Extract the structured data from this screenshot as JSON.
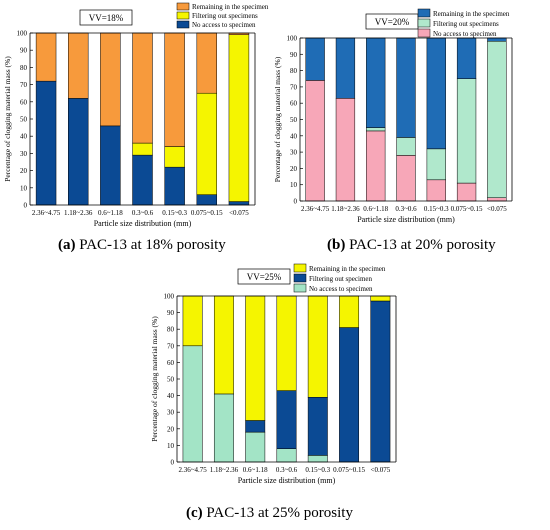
{
  "figure": {
    "captions": [
      {
        "tag": "(a)",
        "text": " PAC-13 at 18% porosity"
      },
      {
        "tag": "(b)",
        "text": " PAC-13 at 20% porosity"
      },
      {
        "tag": "(c)",
        "text": " PAC-13 at 25% porosity"
      }
    ]
  },
  "chart_data": [
    {
      "type": "bar",
      "stacked": true,
      "annotation": "VV=18%",
      "xlabel": "Particle size distribution (mm)",
      "ylabel": "Percentage of clogging material mass (%)",
      "ylim": [
        0,
        100
      ],
      "yticks": [
        0,
        10,
        20,
        30,
        40,
        50,
        60,
        70,
        80,
        90,
        100
      ],
      "legend_position": "top-right",
      "categories": [
        "2.36~4.75",
        "1.18~2.36",
        "0.6~1.18",
        "0.3~0.6",
        "0.15~0.3",
        "0.075~0.15",
        "<0.075"
      ],
      "series": [
        {
          "name": "No access to specimen",
          "color": "#0b4a94",
          "values": [
            72,
            62,
            46,
            29,
            22,
            6,
            2
          ]
        },
        {
          "name": "Filtering out specimens",
          "color": "#f5f500",
          "values": [
            0,
            0,
            0,
            7,
            12,
            59,
            97
          ]
        },
        {
          "name": "Remaining in the specimen",
          "color": "#f79a3c",
          "values": [
            28,
            38,
            54,
            64,
            66,
            35,
            1
          ]
        }
      ]
    },
    {
      "type": "bar",
      "stacked": true,
      "annotation": "VV=20%",
      "xlabel": "Particle size distribution (mm)",
      "ylabel": "Percentage of clogging material mass (%)",
      "ylim": [
        0,
        100
      ],
      "yticks": [
        0,
        10,
        20,
        30,
        40,
        50,
        60,
        70,
        80,
        90,
        100
      ],
      "legend_position": "top-right",
      "categories": [
        "2.36~4.75",
        "1.18~2.36",
        "0.6~1.18",
        "0.3~0.6",
        "0.15~0.3",
        "0.075~0.15",
        "<0.075"
      ],
      "series": [
        {
          "name": "No access to specimen",
          "color": "#f7a7b8",
          "values": [
            74,
            63,
            43,
            28,
            13,
            11,
            2
          ]
        },
        {
          "name": "Filtering out specimens",
          "color": "#b0e8cc",
          "values": [
            0,
            0,
            2,
            11,
            19,
            64,
            96
          ]
        },
        {
          "name": "Remaining in the specimen",
          "color": "#1f6cb5",
          "values": [
            26,
            37,
            55,
            61,
            68,
            25,
            2
          ]
        }
      ]
    },
    {
      "type": "bar",
      "stacked": true,
      "annotation": "VV=25%",
      "xlabel": "Particle size distribution (mm)",
      "ylabel": "Percentage of clogging material mass (%)",
      "ylim": [
        0,
        100
      ],
      "yticks": [
        0,
        10,
        20,
        30,
        40,
        50,
        60,
        70,
        80,
        90,
        100
      ],
      "legend_position": "top-right",
      "categories": [
        "2.36~4.75",
        "1.18~2.36",
        "0.6~1.18",
        "0.3~0.6",
        "0.15~0.3",
        "0.075~0.15",
        "<0.075"
      ],
      "series": [
        {
          "name": "No access to specimen",
          "color": "#a3e4c6",
          "values": [
            70,
            41,
            18,
            8,
            4,
            0,
            0
          ]
        },
        {
          "name": "Filtering out specimen",
          "color": "#0b4a94",
          "values": [
            0,
            0,
            7,
            35,
            35,
            81,
            97
          ]
        },
        {
          "name": "Remaining in the specimen",
          "color": "#f5f500",
          "values": [
            30,
            59,
            75,
            57,
            61,
            19,
            3
          ]
        }
      ]
    }
  ]
}
